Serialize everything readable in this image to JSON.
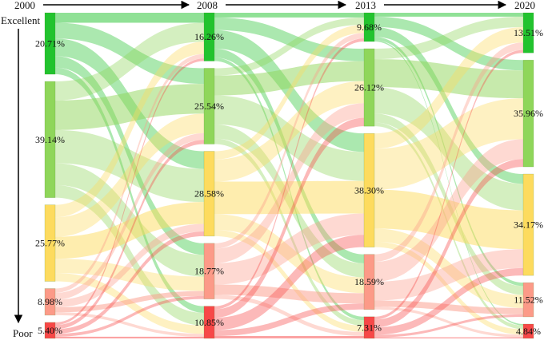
{
  "diagram": {
    "type": "sankey",
    "axis_labels": {
      "top": "Excellent",
      "bottom": "Poor"
    },
    "columns": [
      {
        "year": "2000",
        "values": [
          "20.71%",
          "39.14%",
          "25.77%",
          "8.98%",
          "5.40%"
        ]
      },
      {
        "year": "2008",
        "values": [
          "16.26%",
          "25.54%",
          "28.58%",
          "18.77%",
          "10.85%"
        ]
      },
      {
        "year": "2013",
        "values": [
          "9.68%",
          "26.12%",
          "38.30%",
          "18.59%",
          "7.31%"
        ]
      },
      {
        "year": "2020",
        "values": [
          "13.51%",
          "35.96%",
          "34.17%",
          "11.52%",
          "4.84%"
        ]
      }
    ],
    "category_colors": [
      "#22c32e",
      "#8fd65a",
      "#fddb5e",
      "#fc9a88",
      "#f74848"
    ],
    "arrow_color": "#000000"
  }
}
